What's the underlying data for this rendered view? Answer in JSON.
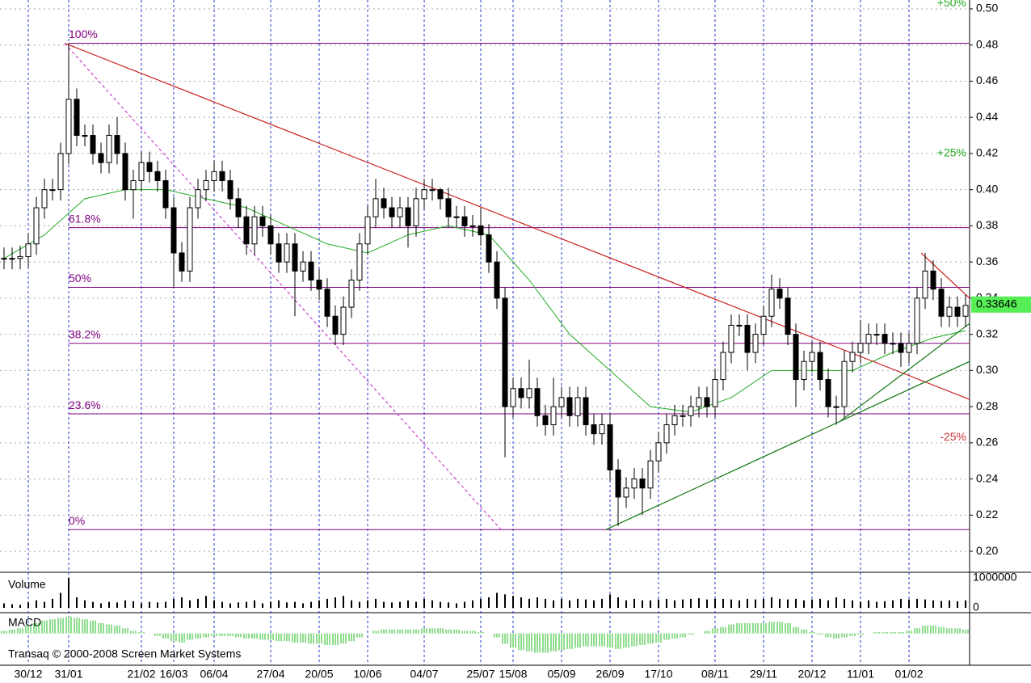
{
  "chart_data": {
    "type": "candlestick",
    "ylim": [
      0.1893,
      0.5049
    ],
    "yticks": [
      {
        "value": 0.2,
        "label": "0.20"
      },
      {
        "value": 0.22,
        "label": "0.22"
      },
      {
        "value": 0.24,
        "label": "0.24"
      },
      {
        "value": 0.26,
        "label": "0.26"
      },
      {
        "value": 0.28,
        "label": "0.28"
      },
      {
        "value": 0.3,
        "label": "0.30"
      },
      {
        "value": 0.32,
        "label": "0.32"
      },
      {
        "value": 0.34,
        "label": "0.34"
      },
      {
        "value": 0.36,
        "label": "0.36"
      },
      {
        "value": 0.38,
        "label": "0.38"
      },
      {
        "value": 0.4,
        "label": "0.40"
      },
      {
        "value": 0.42,
        "label": "0.42"
      },
      {
        "value": 0.44,
        "label": "0.44"
      },
      {
        "value": 0.46,
        "label": "0.46"
      },
      {
        "value": 0.48,
        "label": "0.48"
      },
      {
        "value": 0.5,
        "label": "0.50"
      }
    ],
    "xlim": [
      0,
      120
    ],
    "xticks": [
      {
        "value": 3,
        "label": "30/12"
      },
      {
        "value": 8,
        "label": "31/01"
      },
      {
        "value": 17,
        "label": "21/02"
      },
      {
        "value": 21,
        "label": "16/03"
      },
      {
        "value": 26,
        "label": "06/04"
      },
      {
        "value": 33,
        "label": "27/04"
      },
      {
        "value": 39,
        "label": "20/05"
      },
      {
        "value": 45,
        "label": "10/06"
      },
      {
        "value": 52,
        "label": "04/07"
      },
      {
        "value": 59,
        "label": "25/07"
      },
      {
        "value": 63,
        "label": "15/08"
      },
      {
        "value": 69,
        "label": "05/09"
      },
      {
        "value": 75,
        "label": "26/09"
      },
      {
        "value": 81,
        "label": "17/10"
      },
      {
        "value": 88,
        "label": "08/11"
      },
      {
        "value": 94,
        "label": "29/11"
      },
      {
        "value": 100,
        "label": "20/12"
      },
      {
        "value": 106,
        "label": "11/01"
      },
      {
        "value": 112,
        "label": "01/02"
      }
    ],
    "grid": true,
    "open": [
      0.362,
      0.362,
      0.362,
      0.363,
      0.37,
      0.39,
      0.4,
      0.4,
      0.42,
      0.45,
      0.43,
      0.43,
      0.42,
      0.415,
      0.43,
      0.42,
      0.4,
      0.405,
      0.415,
      0.41,
      0.405,
      0.39,
      0.365,
      0.355,
      0.39,
      0.4,
      0.405,
      0.41,
      0.405,
      0.395,
      0.385,
      0.37,
      0.385,
      0.38,
      0.37,
      0.36,
      0.37,
      0.355,
      0.36,
      0.35,
      0.345,
      0.33,
      0.32,
      0.335,
      0.35,
      0.37,
      0.385,
      0.395,
      0.39,
      0.385,
      0.39,
      0.38,
      0.395,
      0.4,
      0.4,
      0.395,
      0.385,
      0.385,
      0.38,
      0.38,
      0.375,
      0.36,
      0.34,
      0.28,
      0.29,
      0.285,
      0.29,
      0.275,
      0.27,
      0.28,
      0.285,
      0.275,
      0.285,
      0.27,
      0.265,
      0.27,
      0.245,
      0.23,
      0.235,
      0.24,
      0.235,
      0.25,
      0.26,
      0.27,
      0.275,
      0.275,
      0.28,
      0.285,
      0.28,
      0.295,
      0.31,
      0.325,
      0.325,
      0.31,
      0.32,
      0.33,
      0.345,
      0.34,
      0.32,
      0.295,
      0.305,
      0.31,
      0.295,
      0.28,
      0.28,
      0.305,
      0.31,
      0.315,
      0.32,
      0.32,
      0.315,
      0.315,
      0.31,
      0.315,
      0.34,
      0.355,
      0.345,
      0.33,
      0.335,
      0.33
    ],
    "high": [
      0.368,
      0.368,
      0.369,
      0.376,
      0.396,
      0.406,
      0.406,
      0.426,
      0.481,
      0.456,
      0.436,
      0.436,
      0.426,
      0.436,
      0.44,
      0.426,
      0.411,
      0.421,
      0.421,
      0.416,
      0.411,
      0.396,
      0.371,
      0.396,
      0.406,
      0.411,
      0.416,
      0.416,
      0.411,
      0.401,
      0.391,
      0.391,
      0.391,
      0.386,
      0.376,
      0.376,
      0.376,
      0.366,
      0.366,
      0.356,
      0.351,
      0.336,
      0.341,
      0.356,
      0.376,
      0.391,
      0.406,
      0.401,
      0.396,
      0.396,
      0.396,
      0.401,
      0.406,
      0.406,
      0.401,
      0.401,
      0.391,
      0.391,
      0.386,
      0.39,
      0.381,
      0.366,
      0.346,
      0.296,
      0.296,
      0.306,
      0.296,
      0.281,
      0.296,
      0.291,
      0.291,
      0.291,
      0.291,
      0.276,
      0.276,
      0.276,
      0.251,
      0.241,
      0.246,
      0.246,
      0.256,
      0.266,
      0.276,
      0.281,
      0.281,
      0.286,
      0.291,
      0.291,
      0.301,
      0.316,
      0.331,
      0.331,
      0.331,
      0.326,
      0.336,
      0.353,
      0.351,
      0.346,
      0.326,
      0.311,
      0.316,
      0.316,
      0.301,
      0.286,
      0.311,
      0.316,
      0.328,
      0.326,
      0.326,
      0.326,
      0.321,
      0.321,
      0.321,
      0.346,
      0.365,
      0.361,
      0.351,
      0.341,
      0.341,
      0.342
    ],
    "low": [
      0.356,
      0.356,
      0.356,
      0.357,
      0.364,
      0.384,
      0.394,
      0.394,
      0.414,
      0.424,
      0.424,
      0.414,
      0.409,
      0.409,
      0.414,
      0.394,
      0.384,
      0.399,
      0.404,
      0.399,
      0.384,
      0.346,
      0.349,
      0.349,
      0.384,
      0.394,
      0.399,
      0.399,
      0.389,
      0.379,
      0.364,
      0.364,
      0.374,
      0.364,
      0.354,
      0.354,
      0.33,
      0.349,
      0.344,
      0.339,
      0.324,
      0.314,
      0.314,
      0.329,
      0.344,
      0.364,
      0.379,
      0.384,
      0.379,
      0.379,
      0.368,
      0.374,
      0.389,
      0.394,
      0.389,
      0.379,
      0.379,
      0.374,
      0.374,
      0.369,
      0.354,
      0.334,
      0.252,
      0.274,
      0.279,
      0.279,
      0.269,
      0.264,
      0.264,
      0.274,
      0.269,
      0.269,
      0.264,
      0.259,
      0.259,
      0.239,
      0.214,
      0.224,
      0.229,
      0.22,
      0.229,
      0.244,
      0.254,
      0.264,
      0.269,
      0.269,
      0.274,
      0.274,
      0.274,
      0.289,
      0.304,
      0.319,
      0.3,
      0.304,
      0.314,
      0.324,
      0.334,
      0.314,
      0.28,
      0.289,
      0.299,
      0.289,
      0.274,
      0.27,
      0.274,
      0.299,
      0.304,
      0.309,
      0.314,
      0.309,
      0.309,
      0.302,
      0.304,
      0.309,
      0.334,
      0.339,
      0.324,
      0.324,
      0.324,
      0.324
    ],
    "close": [
      0.362,
      0.362,
      0.363,
      0.37,
      0.39,
      0.4,
      0.4,
      0.42,
      0.45,
      0.43,
      0.43,
      0.42,
      0.415,
      0.43,
      0.42,
      0.4,
      0.405,
      0.415,
      0.41,
      0.405,
      0.39,
      0.365,
      0.355,
      0.39,
      0.4,
      0.405,
      0.41,
      0.405,
      0.395,
      0.385,
      0.37,
      0.385,
      0.38,
      0.37,
      0.36,
      0.37,
      0.355,
      0.36,
      0.35,
      0.345,
      0.33,
      0.32,
      0.335,
      0.35,
      0.37,
      0.385,
      0.395,
      0.39,
      0.385,
      0.39,
      0.38,
      0.395,
      0.4,
      0.4,
      0.395,
      0.385,
      0.385,
      0.38,
      0.38,
      0.375,
      0.36,
      0.34,
      0.28,
      0.29,
      0.285,
      0.29,
      0.275,
      0.27,
      0.28,
      0.285,
      0.275,
      0.285,
      0.27,
      0.265,
      0.27,
      0.245,
      0.23,
      0.235,
      0.24,
      0.235,
      0.25,
      0.26,
      0.27,
      0.275,
      0.275,
      0.28,
      0.285,
      0.28,
      0.295,
      0.31,
      0.325,
      0.325,
      0.31,
      0.32,
      0.33,
      0.345,
      0.34,
      0.32,
      0.295,
      0.305,
      0.31,
      0.295,
      0.28,
      0.28,
      0.305,
      0.31,
      0.315,
      0.32,
      0.32,
      0.315,
      0.315,
      0.31,
      0.315,
      0.34,
      0.355,
      0.345,
      0.33,
      0.335,
      0.33,
      0.336
    ],
    "ma": {
      "color": "#22aa22",
      "x": [
        0,
        5,
        10,
        15,
        20,
        25,
        30,
        35,
        40,
        45,
        50,
        55,
        60,
        65,
        70,
        75,
        80,
        85,
        90,
        95,
        100,
        105,
        110,
        115,
        119
      ],
      "values": [
        0.362,
        0.375,
        0.395,
        0.4,
        0.4,
        0.395,
        0.39,
        0.38,
        0.37,
        0.365,
        0.375,
        0.38,
        0.375,
        0.35,
        0.32,
        0.3,
        0.28,
        0.277,
        0.285,
        0.3,
        0.3,
        0.3,
        0.31,
        0.318,
        0.322
      ]
    },
    "levels": [
      {
        "value": 0.481,
        "label": "100%"
      },
      {
        "value": 0.379,
        "label": "61.8%"
      },
      {
        "value": 0.346,
        "label": "50%"
      },
      {
        "value": 0.315,
        "label": "38.2%"
      },
      {
        "value": 0.276,
        "label": "23.6%"
      },
      {
        "value": 0.212,
        "label": "0%"
      }
    ],
    "trendlines": [
      {
        "x": [
          8,
          120
        ],
        "y": [
          0.481,
          0.284
        ],
        "color": "#cc2222",
        "dash": false
      },
      {
        "x": [
          8,
          62
        ],
        "y": [
          0.481,
          0.212
        ],
        "color": "#cc44cc",
        "dash": true
      },
      {
        "x": [
          75,
          120
        ],
        "y": [
          0.212,
          0.305
        ],
        "color": "#117711",
        "dash": false
      },
      {
        "x": [
          104,
          120
        ],
        "y": [
          0.272,
          0.326
        ],
        "color": "#117711",
        "dash": false
      },
      {
        "x": [
          114,
          120
        ],
        "y": [
          0.365,
          0.34
        ],
        "color": "#cc2222",
        "dash": false
      }
    ],
    "pct_labels": [
      {
        "label": "+50%",
        "value": 0.503,
        "color": "#22aa22"
      },
      {
        "label": "+25%",
        "value": 0.42,
        "color": "#22aa22"
      },
      {
        "label": "-25%",
        "value": 0.263,
        "color": "#cc3333"
      }
    ],
    "last_price": 0.33646,
    "volume_title": "Volume",
    "vlim": [
      0,
      1000000
    ],
    "vticks": [
      0,
      1000000
    ],
    "volume": [
      150000,
      120000,
      100000,
      180000,
      250000,
      200000,
      300000,
      500000,
      1000000,
      350000,
      250000,
      200000,
      150000,
      200000,
      180000,
      250000,
      220000,
      150000,
      200000,
      180000,
      200000,
      300000,
      350000,
      250000,
      300000,
      400000,
      250000,
      200000,
      150000,
      180000,
      200000,
      250000,
      150000,
      200000,
      250000,
      180000,
      200000,
      150000,
      200000,
      250000,
      300000,
      350000,
      400000,
      250000,
      200000,
      250000,
      300000,
      200000,
      180000,
      200000,
      250000,
      200000,
      300000,
      250000,
      200000,
      180000,
      150000,
      200000,
      250000,
      300000,
      350000,
      500000,
      450000,
      400000,
      350000,
      300000,
      350000,
      300000,
      250000,
      300000,
      250000,
      300000,
      280000,
      250000,
      300000,
      450000,
      350000,
      250000,
      300000,
      250000,
      250000,
      280000,
      300000,
      250000,
      280000,
      300000,
      320000,
      280000,
      300000,
      300000,
      280000,
      250000,
      300000,
      280000,
      300000,
      350000,
      300000,
      280000,
      300000,
      250000,
      280000,
      300000,
      250000,
      350000,
      300000,
      250000,
      200000,
      250000,
      200000,
      220000,
      250000,
      300000,
      280000,
      300000,
      280000,
      250000,
      230000,
      250000,
      220000,
      250000
    ],
    "macd_title": "MACD",
    "mlim": [
      -0.024,
      0.0148
    ],
    "macd": [
      0.002,
      0.003,
      0.004,
      0.006,
      0.008,
      0.01,
      0.011,
      0.012,
      0.013,
      0.012,
      0.011,
      0.01,
      0.008,
      0.007,
      0.006,
      0.004,
      0.002,
      0.001,
      0,
      -0.002,
      -0.004,
      -0.006,
      -0.007,
      -0.005,
      -0.004,
      -0.003,
      -0.002,
      -0.002,
      -0.002,
      -0.003,
      -0.004,
      -0.004,
      -0.005,
      -0.005,
      -0.006,
      -0.006,
      -0.007,
      -0.007,
      -0.008,
      -0.008,
      -0.009,
      -0.009,
      -0.008,
      -0.006,
      -0.003,
      0,
      0.002,
      0.003,
      0.003,
      0.003,
      0.003,
      0.003,
      0.004,
      0.004,
      0.004,
      0.003,
      0.003,
      0.002,
      0.002,
      0.001,
      0,
      -0.003,
      -0.008,
      -0.011,
      -0.013,
      -0.014,
      -0.015,
      -0.015,
      -0.014,
      -0.013,
      -0.012,
      -0.011,
      -0.01,
      -0.01,
      -0.01,
      -0.011,
      -0.012,
      -0.011,
      -0.01,
      -0.009,
      -0.008,
      -0.007,
      -0.005,
      -0.004,
      -0.003,
      -0.001,
      0,
      0.002,
      0.004,
      0.005,
      0.007,
      0.008,
      0.008,
      0.008,
      0.008,
      0.009,
      0.009,
      0.008,
      0.005,
      0.003,
      0.001,
      -0.001,
      -0.003,
      -0.004,
      -0.003,
      -0.002,
      -0.001,
      0,
      0.001,
      0.001,
      0.001,
      0.001,
      0.002,
      0.004,
      0.006,
      0.006,
      0.005,
      0.004,
      0.004,
      0.003
    ],
    "macd_color": "#22bb22",
    "copyright": "Transaq © 2000-2008 Screen Market Systems"
  }
}
